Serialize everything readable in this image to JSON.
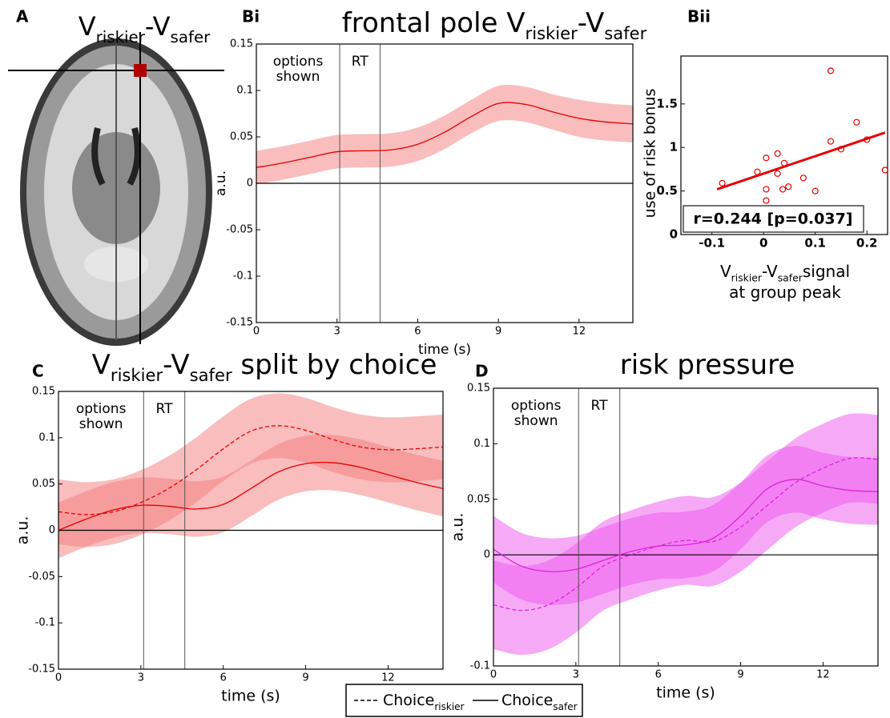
{
  "chart_data": [
    {
      "type": "image",
      "panel": "A",
      "title": [
        {
          "text": "V"
        },
        {
          "text": "riskier",
          "sub": true
        },
        {
          "text": "-"
        },
        {
          "text": "V"
        },
        {
          "text": "safer",
          "sub": true
        }
      ]
    },
    {
      "type": "band_line",
      "panel": "Bi",
      "title": [
        {
          "text": "frontal pole V"
        },
        {
          "text": "riskier",
          "sub": true
        },
        {
          "text": "-"
        },
        {
          "text": "V"
        },
        {
          "text": "safer",
          "sub": true
        }
      ],
      "xlabel": "time (s)",
      "ylabel": "a.u.",
      "x": [
        0,
        1,
        2,
        3,
        4,
        5,
        6,
        7,
        8,
        9,
        10,
        11,
        12,
        13,
        14
      ],
      "xlim": [
        0,
        14
      ],
      "xticks": [
        0,
        3,
        6,
        9,
        12
      ],
      "ylim": [
        -0.15,
        0.15
      ],
      "yticks": [
        -0.15,
        -0.1,
        -0.05,
        0,
        0.05,
        0.1,
        0.15
      ],
      "zero_line": true,
      "events": [
        3.1,
        4.6
      ],
      "phases": [
        [
          "options",
          "shown"
        ],
        [
          "RT"
        ]
      ],
      "series": [
        {
          "color": "#e60000",
          "band_color": "#f47c7c",
          "dash": false,
          "values": [
            0.017,
            0.022,
            0.028,
            0.034,
            0.035,
            0.036,
            0.042,
            0.055,
            0.072,
            0.086,
            0.085,
            0.077,
            0.07,
            0.066,
            0.064
          ],
          "lower": [
            -0.001,
            0.004,
            0.01,
            0.016,
            0.017,
            0.018,
            0.024,
            0.037,
            0.054,
            0.067,
            0.066,
            0.058,
            0.05,
            0.046,
            0.044
          ],
          "upper": [
            0.035,
            0.04,
            0.046,
            0.052,
            0.053,
            0.054,
            0.06,
            0.073,
            0.09,
            0.105,
            0.104,
            0.096,
            0.09,
            0.086,
            0.084
          ]
        }
      ]
    },
    {
      "type": "scatter",
      "panel": "Bii",
      "ylabel": "use of risk bonus",
      "xlabel": [
        [
          {
            "text": "V"
          },
          {
            "text": "riskier",
            "sub": true
          },
          {
            "text": "-"
          },
          {
            "text": "V"
          },
          {
            "text": "safer",
            "sub": true
          },
          {
            "text": "signal"
          }
        ],
        [
          {
            "text": "at group peak"
          }
        ]
      ],
      "xlim": [
        -0.16,
        0.24
      ],
      "xticks": [
        -0.1,
        0,
        0.1,
        0.2
      ],
      "ylim": [
        0,
        2.05
      ],
      "yticks": [
        0,
        0.5,
        1,
        1.5
      ],
      "color": "#e60000",
      "x": [
        -0.08,
        -0.012,
        0.005,
        0.005,
        0.005,
        0.027,
        0.027,
        0.04,
        0.037,
        0.048,
        0.077,
        0.1,
        0.13,
        0.13,
        0.15,
        0.18,
        0.2,
        0.235
      ],
      "y": [
        0.59,
        0.72,
        0.88,
        0.52,
        0.39,
        0.93,
        0.7,
        0.82,
        0.52,
        0.55,
        0.65,
        0.5,
        1.88,
        1.07,
        0.98,
        1.29,
        1.09,
        0.74
      ],
      "fit": {
        "x": [
          -0.09,
          0.235
        ],
        "y": [
          0.52,
          1.17
        ]
      },
      "annotation": "r=0.244  [p=0.037]"
    },
    {
      "type": "band_line",
      "panel": "C",
      "title": [
        {
          "text": "V"
        },
        {
          "text": "riskier",
          "sub": true
        },
        {
          "text": "-V"
        },
        {
          "text": "safer",
          "sub": true
        },
        {
          "text": " split by choice"
        }
      ],
      "xlabel": "time (s)",
      "ylabel": "a.u.",
      "x": [
        0,
        1,
        2,
        3,
        4,
        5,
        6,
        7,
        8,
        9,
        10,
        11,
        12,
        13,
        14
      ],
      "xlim": [
        0,
        14
      ],
      "xticks": [
        0,
        3,
        6,
        9,
        12
      ],
      "ylim": [
        -0.15,
        0.15
      ],
      "yticks": [
        -0.15,
        -0.1,
        -0.05,
        0,
        0.05,
        0.1,
        0.15
      ],
      "zero_line": true,
      "events": [
        3.1,
        4.6
      ],
      "phases": [
        [
          "options",
          "shown"
        ],
        [
          "RT"
        ]
      ],
      "series": [
        {
          "name": "Choice",
          "name_sub": "riskier",
          "color": "#e60000",
          "band_color": "#f47c7c",
          "dash": true,
          "values": [
            0.02,
            0.017,
            0.02,
            0.03,
            0.045,
            0.065,
            0.088,
            0.107,
            0.113,
            0.108,
            0.098,
            0.09,
            0.087,
            0.088,
            0.09
          ],
          "lower": [
            -0.015,
            -0.018,
            -0.015,
            -0.005,
            0.01,
            0.03,
            0.053,
            0.072,
            0.078,
            0.073,
            0.063,
            0.055,
            0.052,
            0.053,
            0.055
          ],
          "upper": [
            0.055,
            0.052,
            0.055,
            0.065,
            0.08,
            0.1,
            0.123,
            0.142,
            0.148,
            0.143,
            0.133,
            0.125,
            0.122,
            0.123,
            0.125
          ]
        },
        {
          "name": "Choice",
          "name_sub": "safer",
          "color": "#e60000",
          "band_color": "#f47c7c",
          "dash": false,
          "values": [
            0,
            0.012,
            0.022,
            0.027,
            0.026,
            0.023,
            0.028,
            0.045,
            0.063,
            0.072,
            0.073,
            0.068,
            0.06,
            0.052,
            0.045
          ],
          "lower": [
            -0.03,
            -0.018,
            -0.008,
            -0.003,
            -0.004,
            -0.007,
            -0.002,
            0.015,
            0.033,
            0.042,
            0.043,
            0.038,
            0.03,
            0.022,
            0.015
          ],
          "upper": [
            0.03,
            0.042,
            0.052,
            0.057,
            0.056,
            0.053,
            0.058,
            0.075,
            0.093,
            0.102,
            0.103,
            0.098,
            0.09,
            0.082,
            0.075
          ]
        }
      ]
    },
    {
      "type": "band_line",
      "panel": "D",
      "title": [
        {
          "text": "risk pressure"
        }
      ],
      "xlabel": "time (s)",
      "ylabel": "a.u.",
      "x": [
        0,
        1,
        2,
        3,
        4,
        5,
        6,
        7,
        8,
        9,
        10,
        11,
        12,
        13,
        14
      ],
      "xlim": [
        0,
        14
      ],
      "xticks": [
        0,
        3,
        6,
        9,
        12
      ],
      "ylim": [
        -0.1,
        0.15
      ],
      "yticks": [
        -0.1,
        0,
        0.05,
        0.1,
        0.15
      ],
      "zero_line": true,
      "events": [
        3.1,
        4.6
      ],
      "phases": [
        [
          "options",
          "shown"
        ],
        [
          "RT"
        ]
      ],
      "series": [
        {
          "color": "#dd22dd",
          "band_color": "#ee55ee",
          "dash": true,
          "values": [
            -0.045,
            -0.05,
            -0.045,
            -0.03,
            -0.01,
            0,
            0.008,
            0.013,
            0.012,
            0.025,
            0.045,
            0.065,
            0.078,
            0.087,
            0.086
          ],
          "lower": [
            -0.085,
            -0.09,
            -0.085,
            -0.07,
            -0.05,
            -0.04,
            -0.032,
            -0.027,
            -0.028,
            -0.015,
            0.005,
            0.025,
            0.038,
            0.047,
            0.046
          ],
          "upper": [
            -0.005,
            -0.01,
            -0.005,
            0.01,
            0.03,
            0.04,
            0.048,
            0.053,
            0.052,
            0.065,
            0.085,
            0.105,
            0.118,
            0.127,
            0.126
          ]
        },
        {
          "color": "#dd22dd",
          "band_color": "#ee55ee",
          "dash": false,
          "values": [
            0.005,
            -0.01,
            -0.015,
            -0.013,
            -0.005,
            0.003,
            0.008,
            0.009,
            0.015,
            0.035,
            0.06,
            0.068,
            0.062,
            0.058,
            0.057
          ],
          "lower": [
            -0.025,
            -0.04,
            -0.045,
            -0.043,
            -0.035,
            -0.027,
            -0.022,
            -0.021,
            -0.015,
            0.005,
            0.03,
            0.038,
            0.032,
            0.028,
            0.027
          ],
          "upper": [
            0.035,
            0.02,
            0.015,
            0.017,
            0.025,
            0.033,
            0.038,
            0.039,
            0.045,
            0.065,
            0.09,
            0.098,
            0.092,
            0.088,
            0.087
          ]
        }
      ]
    }
  ]
}
